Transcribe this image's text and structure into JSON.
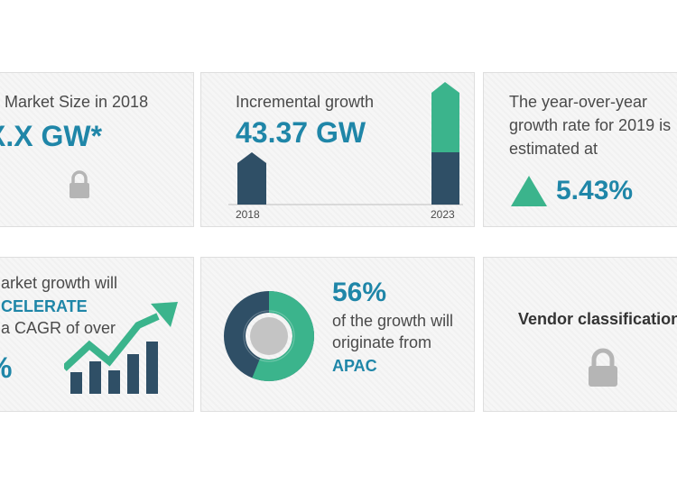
{
  "colors": {
    "teal": "#3bb48c",
    "navy": "#2f4f66",
    "blue": "#1f86a8",
    "gray_text": "#4a4a4a",
    "lock": "#b5b5b5"
  },
  "cards": {
    "market_size": {
      "label": "Market Size in 2018",
      "value": "X.X GW*",
      "icon": "lock-icon"
    },
    "incremental": {
      "label": "Incremental growth",
      "value": "43.37 GW",
      "bars": {
        "start_label": "2018",
        "end_label": "2023"
      }
    },
    "yoy": {
      "line1": "The year-over-year",
      "line2": "growth rate for 2019 is",
      "line3": "estimated at",
      "value": "5.43%",
      "icon": "triangle-up-icon"
    },
    "cagr": {
      "line1": "arket growth will",
      "line2": "CELERATE",
      "line3": "a CAGR of over",
      "value": "%",
      "icon": "growth-chart-icon"
    },
    "apac": {
      "percent": "56%",
      "line1": "of the growth will",
      "line2": "originate from",
      "region": "APAC",
      "share": 0.56
    },
    "vendor": {
      "label": "Vendor classification",
      "icon": "lock-icon"
    }
  }
}
